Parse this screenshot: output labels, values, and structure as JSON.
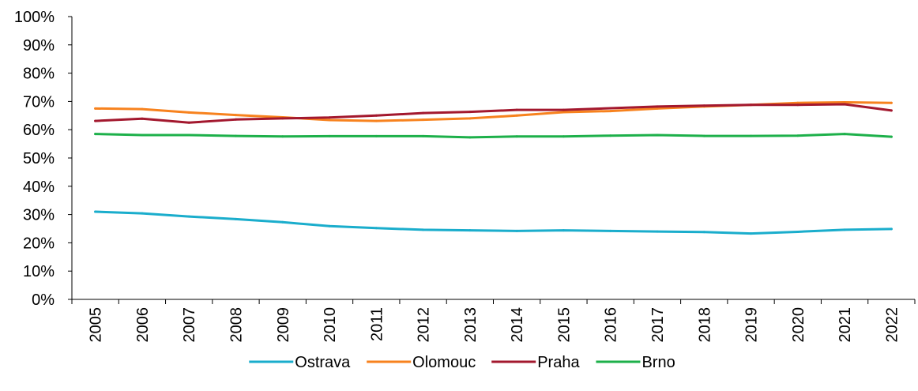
{
  "chart_data": {
    "type": "line",
    "title": "",
    "xlabel": "",
    "ylabel": "",
    "ylim": [
      0,
      100
    ],
    "yticks": [
      "0%",
      "10%",
      "20%",
      "30%",
      "40%",
      "50%",
      "60%",
      "70%",
      "80%",
      "90%",
      "100%"
    ],
    "grid": false,
    "legend_position": "bottom",
    "categories": [
      "2005",
      "2006",
      "2007",
      "2008",
      "2009",
      "2010",
      "2011",
      "2012",
      "2013",
      "2014",
      "2015",
      "2016",
      "2017",
      "2018",
      "2019",
      "2020",
      "2021",
      "2022"
    ],
    "series": [
      {
        "name": "Ostrava",
        "color": "#1AADCC",
        "values": [
          31.0,
          30.4,
          29.3,
          28.4,
          27.3,
          25.9,
          25.2,
          24.6,
          24.4,
          24.2,
          24.4,
          24.2,
          24.0,
          23.8,
          23.3,
          23.9,
          24.6,
          24.9
        ]
      },
      {
        "name": "Olomouc",
        "color": "#F7821E",
        "values": [
          67.5,
          67.3,
          66.1,
          65.2,
          64.4,
          63.4,
          63.1,
          63.5,
          64.0,
          65.0,
          66.2,
          66.6,
          67.5,
          68.2,
          68.8,
          69.5,
          69.7,
          69.5
        ]
      },
      {
        "name": "Praha",
        "color": "#A3182E",
        "values": [
          63.1,
          63.9,
          62.5,
          63.6,
          64.0,
          64.3,
          65.0,
          65.9,
          66.3,
          67.0,
          67.0,
          67.6,
          68.2,
          68.5,
          68.8,
          68.8,
          69.0,
          66.8
        ]
      },
      {
        "name": "Brno",
        "color": "#1DB04A",
        "values": [
          58.5,
          58.1,
          58.1,
          57.8,
          57.6,
          57.7,
          57.7,
          57.7,
          57.3,
          57.6,
          57.6,
          57.9,
          58.1,
          57.8,
          57.8,
          57.9,
          58.5,
          57.5
        ]
      }
    ]
  }
}
